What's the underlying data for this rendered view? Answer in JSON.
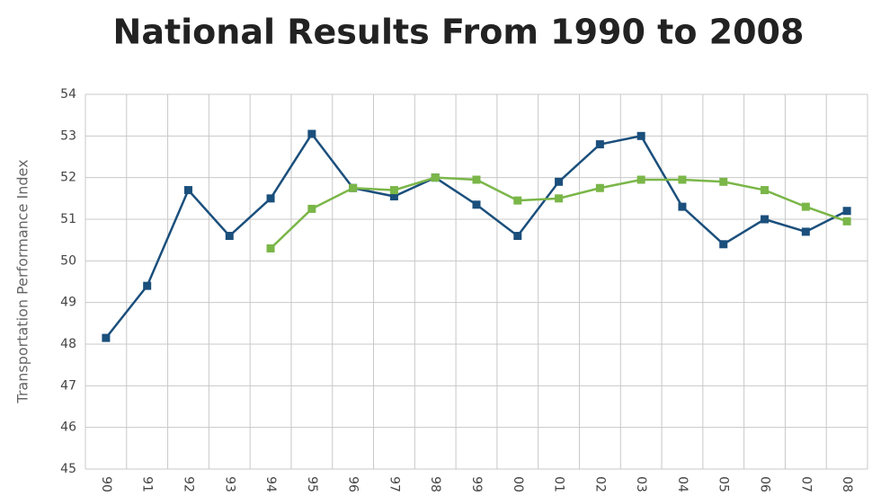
{
  "chart_data": {
    "type": "line",
    "title": "National Results From 1990 to 2008",
    "y_label": "Transportation Performance Index",
    "categories": [
      "90",
      "91",
      "92",
      "93",
      "94",
      "95",
      "96",
      "97",
      "98",
      "99",
      "00",
      "01",
      "02",
      "03",
      "04",
      "05",
      "06",
      "07",
      "08"
    ],
    "series": [
      {
        "color": "#1b4f7c",
        "values": [
          48.15,
          49.4,
          51.7,
          50.6,
          51.5,
          53.05,
          51.75,
          51.55,
          52.0,
          51.35,
          50.6,
          51.9,
          52.8,
          53.0,
          51.3,
          50.4,
          51.0,
          50.7,
          51.2
        ]
      },
      {
        "color": "#7ab648",
        "values": [
          null,
          null,
          null,
          null,
          50.3,
          51.25,
          51.75,
          51.7,
          52.0,
          51.95,
          51.45,
          51.5,
          51.75,
          51.95,
          51.95,
          51.9,
          51.7,
          51.3,
          50.95
        ]
      }
    ],
    "ylim": [
      45,
      54
    ],
    "yticks": [
      45,
      46,
      47,
      48,
      49,
      50,
      51,
      52,
      53,
      54
    ],
    "grid": true
  }
}
